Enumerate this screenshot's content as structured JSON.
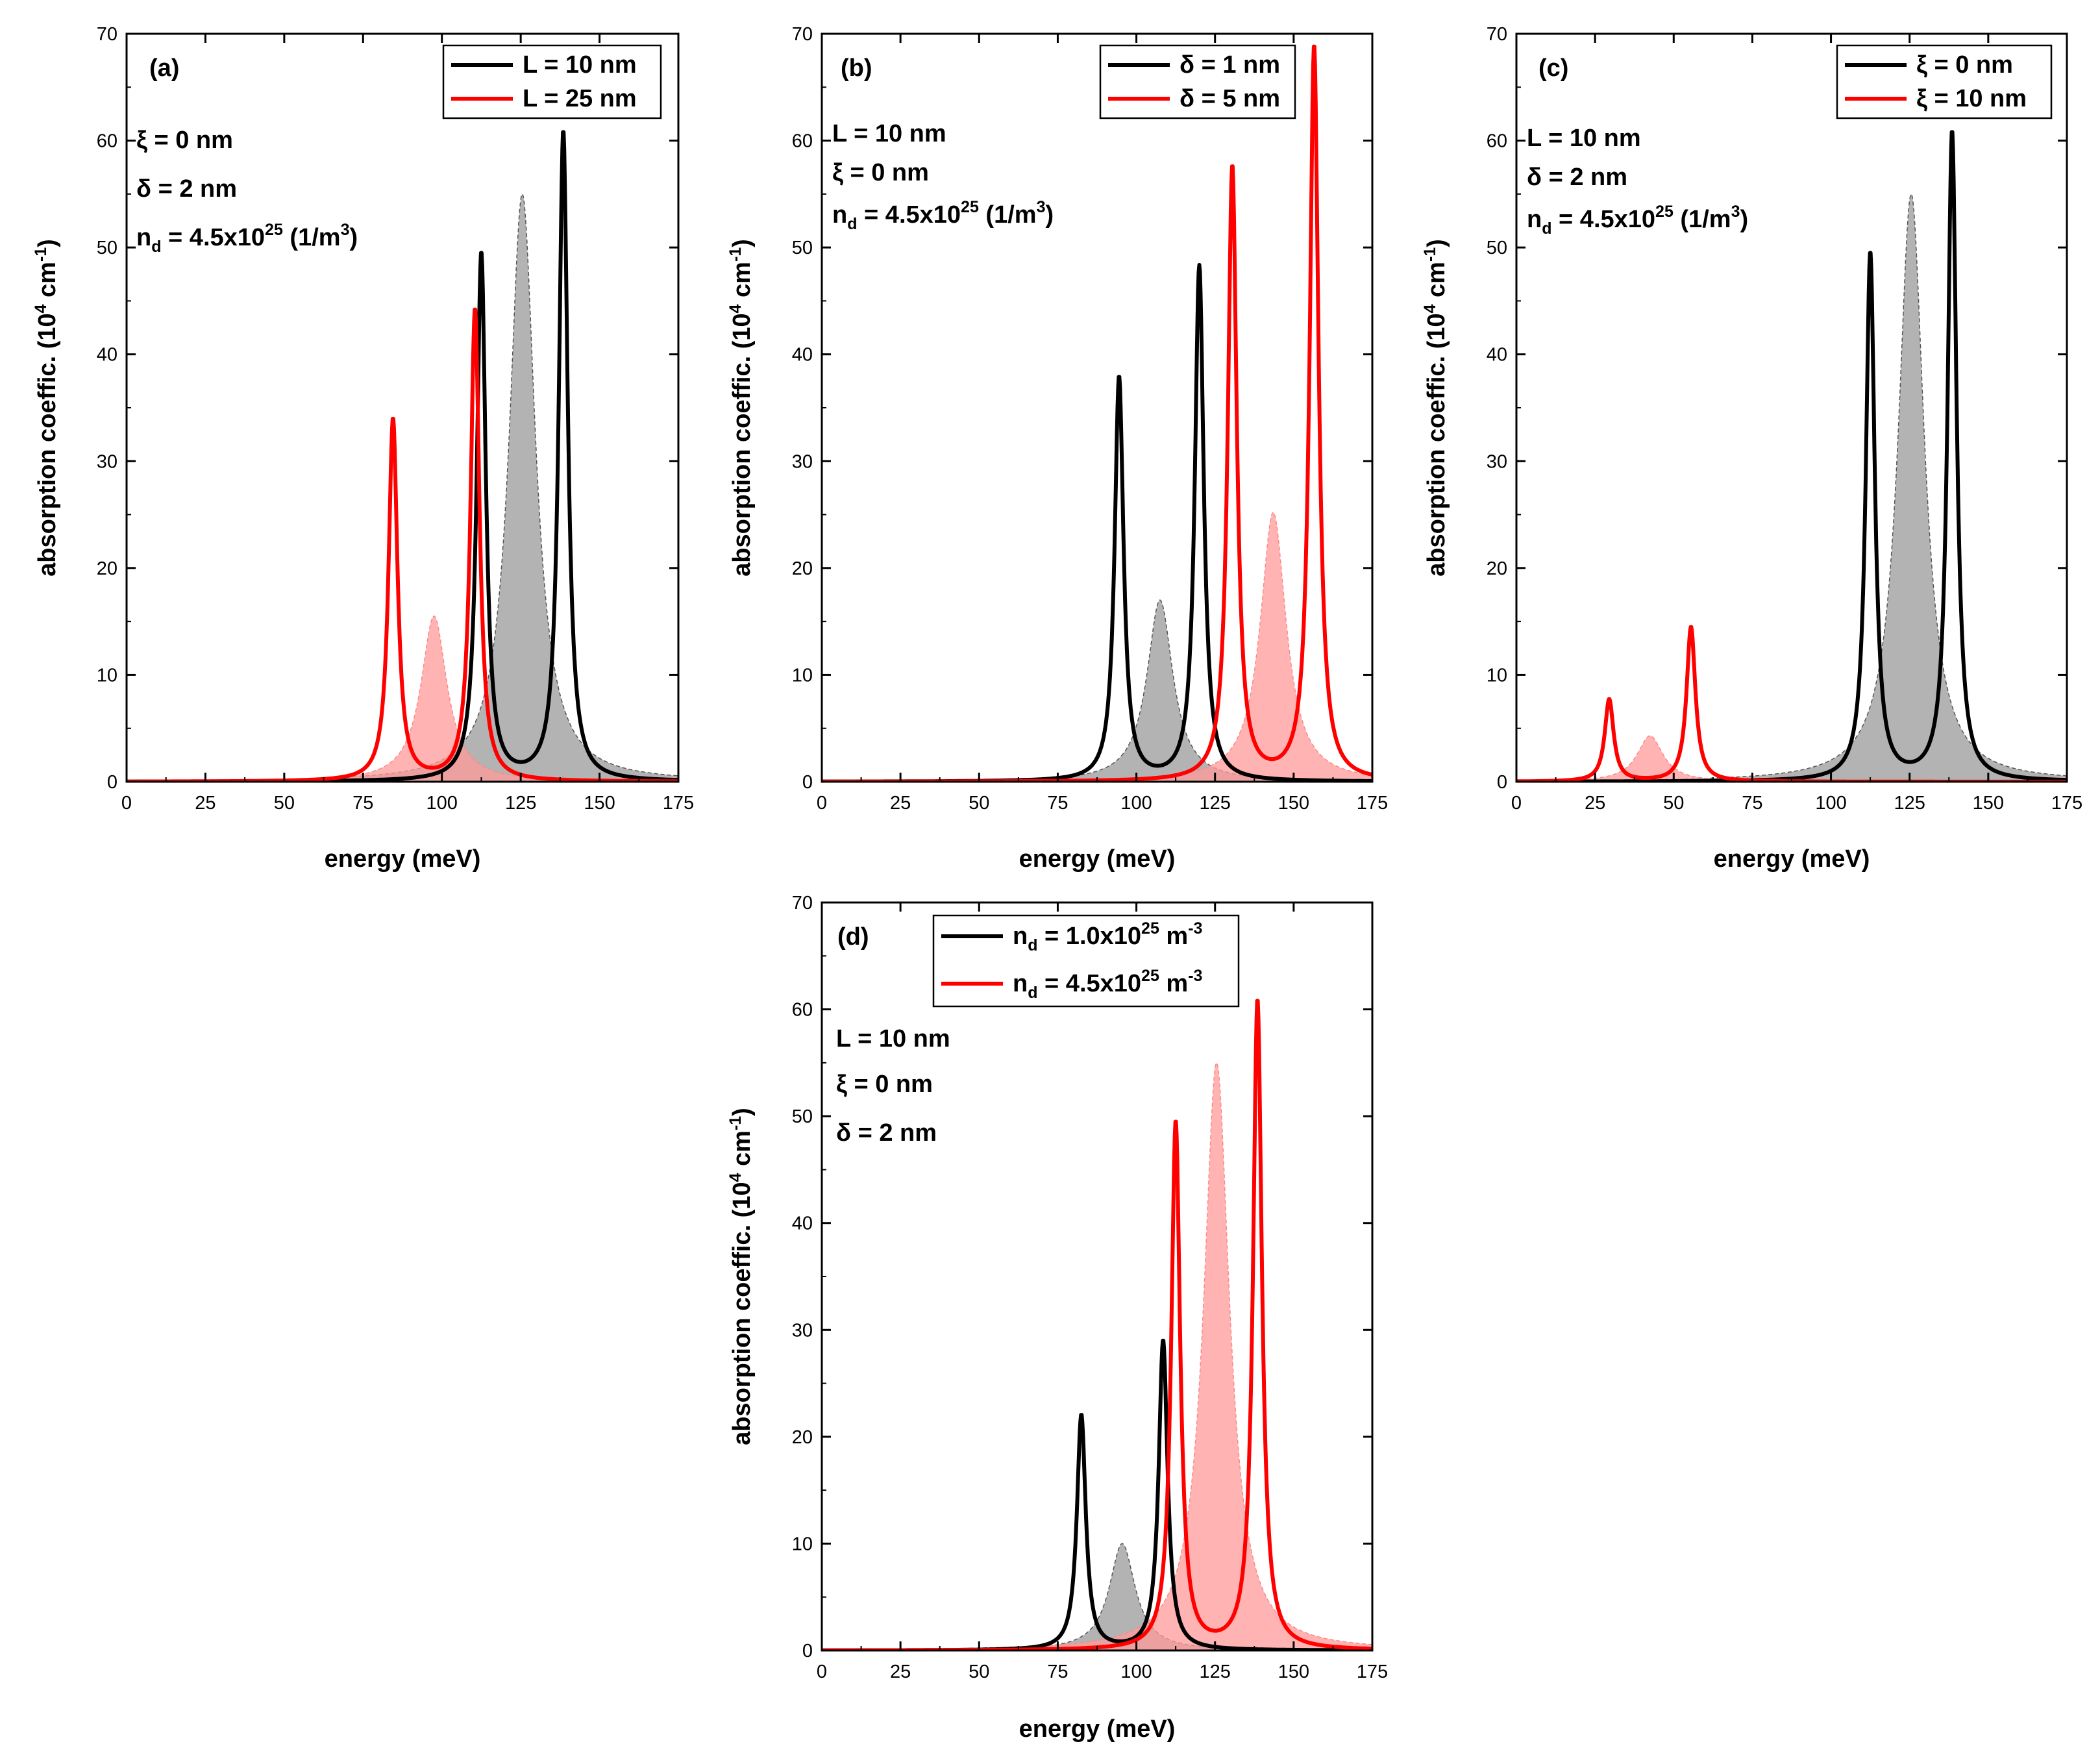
{
  "colors": {
    "black_series": "#000000",
    "red_series": "#ff0000",
    "gray_fill": "#9a9a9a",
    "pink_fill": "#ff9a9a",
    "axis": "#000000",
    "background": "#ffffff"
  },
  "chart_data": [
    {
      "id": "a",
      "type": "line",
      "panel_label": "(a)",
      "xlabel": "energy (meV)",
      "ylabel": "absorption coeffic. (10^4 cm^-1)",
      "xlim": [
        0,
        175
      ],
      "ylim": [
        0,
        70
      ],
      "xticks": [
        0,
        25,
        50,
        75,
        100,
        125,
        150,
        175
      ],
      "yticks": [
        0,
        10,
        20,
        30,
        40,
        50,
        60,
        70
      ],
      "annotations": [
        "ξ = 0 nm",
        "δ = 2 nm",
        "n_d = 4.5x10^25 (1/m^3)"
      ],
      "series": [
        {
          "name": "L = 10 nm",
          "color": "black",
          "kind": "line",
          "peaks": [
            [
              112.5,
              49.4,
              1.7
            ],
            [
              138.5,
              60.8,
              1.7
            ]
          ]
        },
        {
          "name": "L = 25 nm",
          "color": "red",
          "kind": "line",
          "peaks": [
            [
              84.5,
              33.9,
              1.7
            ],
            [
              110.5,
              44.2,
              1.7
            ]
          ]
        },
        {
          "name": "",
          "color": "gray",
          "kind": "fill",
          "peaks": [
            [
              125.5,
              55.0,
              5.0
            ]
          ]
        },
        {
          "name": "",
          "color": "pink",
          "kind": "fill",
          "peaks": [
            [
              97.5,
              15.5,
              5.0
            ]
          ]
        }
      ]
    },
    {
      "id": "b",
      "type": "line",
      "panel_label": "(b)",
      "xlabel": "energy (meV)",
      "ylabel": "absorption coeffic. (10^4 cm^-1)",
      "xlim": [
        0,
        175
      ],
      "ylim": [
        0,
        70
      ],
      "xticks": [
        0,
        25,
        50,
        75,
        100,
        125,
        150,
        175
      ],
      "yticks": [
        0,
        10,
        20,
        30,
        40,
        50,
        60,
        70
      ],
      "annotations": [
        "L = 10 nm",
        "ξ = 0 nm",
        "n_d = 4.5x10^25 (1/m^3)"
      ],
      "series": [
        {
          "name": "δ = 1 nm",
          "color": "black",
          "kind": "line",
          "peaks": [
            [
              94.5,
              37.8,
              1.7
            ],
            [
              120.0,
              48.2,
              1.7
            ]
          ]
        },
        {
          "name": "δ = 5 nm",
          "color": "red",
          "kind": "line",
          "peaks": [
            [
              130.5,
              57.5,
              1.7
            ],
            [
              156.5,
              68.8,
              1.7
            ]
          ]
        },
        {
          "name": "",
          "color": "gray",
          "kind": "fill",
          "peaks": [
            [
              107.5,
              17.0,
              5.0
            ]
          ]
        },
        {
          "name": "",
          "color": "pink",
          "kind": "fill",
          "peaks": [
            [
              143.5,
              25.2,
              5.0
            ]
          ]
        }
      ]
    },
    {
      "id": "c",
      "type": "line",
      "panel_label": "(c)",
      "xlabel": "energy (meV)",
      "ylabel": "absorption coeffic. (10^4 cm^-1)",
      "xlim": [
        0,
        175
      ],
      "ylim": [
        0,
        70
      ],
      "xticks": [
        0,
        25,
        50,
        75,
        100,
        125,
        150,
        175
      ],
      "yticks": [
        0,
        10,
        20,
        30,
        40,
        50,
        60,
        70
      ],
      "annotations": [
        "L = 10 nm",
        "δ = 2 nm",
        "n_d = 4.5x10^25 (1/m^3)"
      ],
      "series": [
        {
          "name": "ξ = 0 nm",
          "color": "black",
          "kind": "line",
          "peaks": [
            [
              112.5,
              49.4,
              1.7
            ],
            [
              138.5,
              60.8,
              1.7
            ]
          ]
        },
        {
          "name": "ξ = 10 nm",
          "color": "red",
          "kind": "line",
          "peaks": [
            [
              29.5,
              7.7,
              1.7
            ],
            [
              55.5,
              14.5,
              1.7
            ]
          ]
        },
        {
          "name": "",
          "color": "gray",
          "kind": "fill",
          "peaks": [
            [
              125.5,
              55.0,
              5.0
            ]
          ]
        },
        {
          "name": "",
          "color": "pink",
          "kind": "fill",
          "peaks": [
            [
              42.5,
              4.3,
              5.0
            ]
          ]
        }
      ]
    },
    {
      "id": "d",
      "type": "line",
      "panel_label": "(d)",
      "xlabel": "energy (meV)",
      "ylabel": "absorption coeffic. (10^4 cm^-1)",
      "xlim": [
        0,
        175
      ],
      "ylim": [
        0,
        70
      ],
      "xticks": [
        0,
        25,
        50,
        75,
        100,
        125,
        150,
        175
      ],
      "yticks": [
        0,
        10,
        20,
        30,
        40,
        50,
        60,
        70
      ],
      "annotations": [
        "L = 10 nm",
        "ξ = 0 nm",
        "δ = 2 nm"
      ],
      "series": [
        {
          "name": "n_d = 1.0x10^25 m^-3",
          "color": "black",
          "kind": "line",
          "peaks": [
            [
              82.5,
              22.0,
              1.7
            ],
            [
              108.5,
              29.0,
              1.7
            ]
          ]
        },
        {
          "name": "n_d = 4.5x10^25 m^-3",
          "color": "red",
          "kind": "line",
          "peaks": [
            [
              112.5,
              49.4,
              1.7
            ],
            [
              138.5,
              60.8,
              1.7
            ]
          ]
        },
        {
          "name": "",
          "color": "gray",
          "kind": "fill",
          "peaks": [
            [
              95.5,
              10.0,
              5.0
            ]
          ]
        },
        {
          "name": "",
          "color": "pink",
          "kind": "fill",
          "peaks": [
            [
              125.5,
              55.0,
              5.0
            ]
          ]
        }
      ]
    }
  ],
  "text": {
    "a": {
      "panel": "(a)",
      "xlabel": "energy (meV)",
      "ylabel_main": "absorption coeffic. (10",
      "ylabel_sup1": "4",
      "ylabel_mid": " cm",
      "ylabel_sup2": "-1",
      "ylabel_end": ")",
      "leg1": "L = 10 nm",
      "leg2": "L = 25 nm",
      "ann1": "ξ = 0 nm",
      "ann2": "δ = 2 nm",
      "ann3": {
        "a": "n",
        "b": "d",
        "c": " = 4.5x10",
        "d": "25",
        "e": " (1/m",
        "f": "3",
        "g": ")"
      }
    },
    "b": {
      "panel": "(b)",
      "xlabel": "energy (meV)",
      "ylabel_main": "absorption coeffic. (10",
      "ylabel_sup1": "4",
      "ylabel_mid": " cm",
      "ylabel_sup2": "-1",
      "ylabel_end": ")",
      "leg1": "δ = 1 nm",
      "leg2": "δ = 5 nm",
      "ann1": "L = 10 nm",
      "ann2": "ξ = 0 nm",
      "ann3": {
        "a": "n",
        "b": "d",
        "c": " = 4.5x10",
        "d": "25",
        "e": " (1/m",
        "f": "3",
        "g": ")"
      }
    },
    "c": {
      "panel": "(c)",
      "xlabel": "energy (meV)",
      "ylabel_main": "absorption coeffic. (10",
      "ylabel_sup1": "4",
      "ylabel_mid": " cm",
      "ylabel_sup2": "-1",
      "ylabel_end": ")",
      "leg1": "ξ = 0 nm",
      "leg2": "ξ = 10 nm",
      "ann1": "L = 10 nm",
      "ann2": "δ = 2 nm",
      "ann3": {
        "a": "n",
        "b": "d",
        "c": " = 4.5x10",
        "d": "25",
        "e": " (1/m",
        "f": "3",
        "g": ")"
      }
    },
    "d": {
      "panel": "(d)",
      "xlabel": "energy (meV)",
      "ylabel_main": "absorption coeffic. (10",
      "ylabel_sup1": "4",
      "ylabel_mid": " cm",
      "ylabel_sup2": "-1",
      "ylabel_end": ")",
      "leg1": {
        "a": "n",
        "b": "d",
        "c": " = 1.0x10",
        "d": "25",
        "e": " m",
        "f": "-3"
      },
      "leg2": {
        "a": "n",
        "b": "d",
        "c": " = 4.5x10",
        "d": "25",
        "e": " m",
        "f": "-3"
      },
      "ann1": "L = 10 nm",
      "ann2": "ξ = 0 nm",
      "ann3": "δ = 2 nm"
    }
  }
}
